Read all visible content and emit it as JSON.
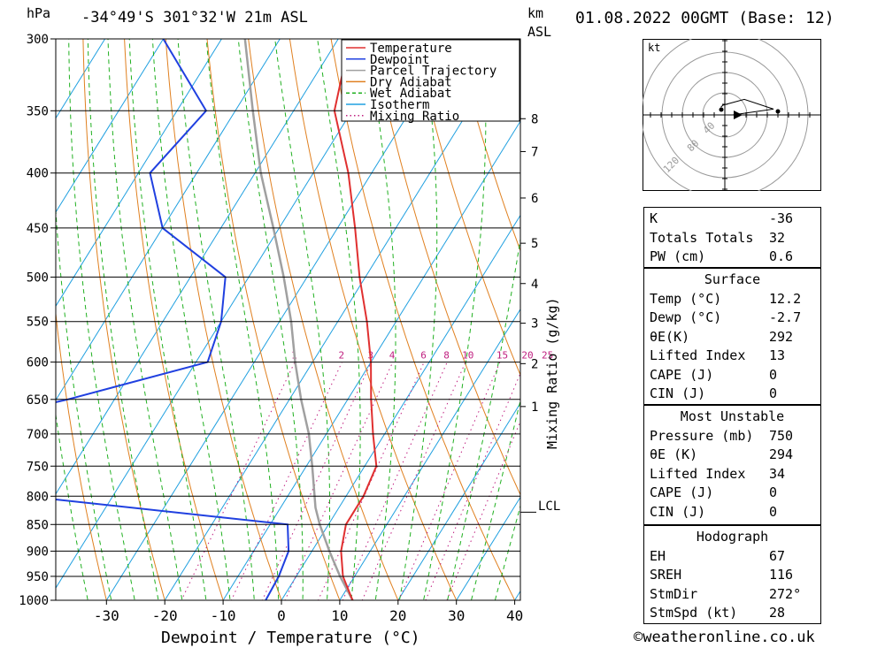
{
  "header": {
    "hpa_unit": "hPa",
    "location": "-34°49'S  301°32'W  21m  ASL",
    "km_unit": "km",
    "asl_label": "ASL",
    "datetime": "01.08.2022  00GMT  (Base: 12)"
  },
  "axes": {
    "xlabel": "Dewpoint / Temperature (°C)",
    "xticks": [
      "-30",
      "-20",
      "-10",
      "0",
      "10",
      "20",
      "30",
      "40"
    ],
    "pressure_levels": [
      "300",
      "350",
      "400",
      "450",
      "500",
      "550",
      "600",
      "650",
      "700",
      "750",
      "800",
      "850",
      "900",
      "950",
      "1000"
    ],
    "km_ticks": [
      "8",
      "7",
      "6",
      "5",
      "4",
      "3",
      "2",
      "1"
    ],
    "lcl_label": "LCL",
    "mixing_ratio_axis": "Mixing Ratio (g/kg)",
    "mixing_ratio_labels": [
      "1",
      "2",
      "3",
      "4",
      "6",
      "8",
      "10",
      "15",
      "20",
      "25"
    ]
  },
  "legend": {
    "items": [
      {
        "label": "Temperature",
        "color": "#e03030",
        "style": "solid"
      },
      {
        "label": "Dewpoint",
        "color": "#2040e0",
        "style": "solid"
      },
      {
        "label": "Parcel Trajectory",
        "color": "#a0a0a0",
        "style": "solid"
      },
      {
        "label": "Dry Adiabat",
        "color": "#e08020",
        "style": "solid"
      },
      {
        "label": "Wet Adiabat",
        "color": "#20b020",
        "style": "dashed"
      },
      {
        "label": "Isotherm",
        "color": "#20a0e0",
        "style": "solid"
      },
      {
        "label": "Mixing Ratio",
        "color": "#c02080",
        "style": "dotted"
      }
    ]
  },
  "hodograph": {
    "unit": "kt",
    "ring_labels": [
      "40",
      "80",
      "120"
    ]
  },
  "indices": {
    "top": [
      {
        "label": "K",
        "value": "-36"
      },
      {
        "label": "Totals Totals",
        "value": "32"
      },
      {
        "label": "PW (cm)",
        "value": "0.6"
      }
    ],
    "surface": {
      "title": "Surface",
      "rows": [
        {
          "label": "Temp (°C)",
          "value": "12.2"
        },
        {
          "label": "Dewp (°C)",
          "value": "-2.7"
        },
        {
          "label": "θE(K)",
          "value": "292"
        },
        {
          "label": "Lifted Index",
          "value": "13"
        },
        {
          "label": "CAPE (J)",
          "value": "0"
        },
        {
          "label": "CIN (J)",
          "value": "0"
        }
      ]
    },
    "most_unstable": {
      "title": "Most Unstable",
      "rows": [
        {
          "label": "Pressure (mb)",
          "value": "750"
        },
        {
          "label": "θE (K)",
          "value": "294"
        },
        {
          "label": "Lifted Index",
          "value": "34"
        },
        {
          "label": "CAPE (J)",
          "value": "0"
        },
        {
          "label": "CIN (J)",
          "value": "0"
        }
      ]
    },
    "hodograph_box": {
      "title": "Hodograph",
      "rows": [
        {
          "label": "EH",
          "value": "67"
        },
        {
          "label": "SREH",
          "value": "116"
        },
        {
          "label": "StmDir",
          "value": "272°"
        },
        {
          "label": "StmSpd (kt)",
          "value": "28"
        }
      ]
    }
  },
  "footer": {
    "copyright_symbol": "©",
    "site": "weatheronline.co.uk"
  },
  "colors": {
    "temperature": "#e03030",
    "dewpoint": "#2040e0",
    "parcel": "#a0a0a0",
    "dry_adiabat": "#e08020",
    "wet_adiabat": "#20b020",
    "isotherm": "#20a0e0",
    "mixing_ratio": "#c02080"
  },
  "chart_data": {
    "type": "line",
    "subtype": "skew-T log-P",
    "xlim": [
      -40,
      40
    ],
    "ylim_hpa": [
      1000,
      300
    ],
    "temperature": [
      {
        "p": 1000,
        "t": 12.2
      },
      {
        "p": 950,
        "t": 8
      },
      {
        "p": 900,
        "t": 5
      },
      {
        "p": 850,
        "t": 3
      },
      {
        "p": 800,
        "t": 3
      },
      {
        "p": 750,
        "t": 2
      },
      {
        "p": 700,
        "t": -2
      },
      {
        "p": 650,
        "t": -6
      },
      {
        "p": 600,
        "t": -10
      },
      {
        "p": 550,
        "t": -15
      },
      {
        "p": 500,
        "t": -21
      },
      {
        "p": 450,
        "t": -27
      },
      {
        "p": 400,
        "t": -34
      },
      {
        "p": 350,
        "t": -43
      },
      {
        "p": 300,
        "t": -48
      }
    ],
    "dewpoint": [
      {
        "p": 1000,
        "t": -2.7
      },
      {
        "p": 950,
        "t": -3
      },
      {
        "p": 900,
        "t": -4
      },
      {
        "p": 850,
        "t": -7
      },
      {
        "p": 800,
        "t": -55
      },
      {
        "p": 750,
        "t": -70
      },
      {
        "p": 700,
        "t": -80
      },
      {
        "p": 650,
        "t": -58
      },
      {
        "p": 600,
        "t": -38
      },
      {
        "p": 550,
        "t": -40
      },
      {
        "p": 500,
        "t": -44
      },
      {
        "p": 450,
        "t": -60
      },
      {
        "p": 400,
        "t": -68
      },
      {
        "p": 350,
        "t": -65
      },
      {
        "p": 300,
        "t": -80
      }
    ],
    "parcel": [
      {
        "p": 1000,
        "t": 12.2
      },
      {
        "p": 950,
        "t": 7.5
      },
      {
        "p": 900,
        "t": 3
      },
      {
        "p": 850,
        "t": -1.5
      },
      {
        "p": 820,
        "t": -4
      },
      {
        "p": 750,
        "t": -9
      },
      {
        "p": 700,
        "t": -13
      },
      {
        "p": 650,
        "t": -18
      },
      {
        "p": 600,
        "t": -23
      },
      {
        "p": 550,
        "t": -28
      },
      {
        "p": 500,
        "t": -34
      },
      {
        "p": 450,
        "t": -41
      },
      {
        "p": 400,
        "t": -49
      },
      {
        "p": 350,
        "t": -57
      },
      {
        "p": 300,
        "t": -66
      }
    ],
    "lcl_hpa": 820,
    "mixing_ratio_lines_gkg": [
      1,
      2,
      3,
      4,
      6,
      8,
      10,
      15,
      20,
      25
    ],
    "hodograph_kt": [
      {
        "u": -2,
        "v": 4
      },
      {
        "u": -1,
        "v": 5
      },
      {
        "u": 10,
        "v": 8
      },
      {
        "u": 25,
        "v": 3
      },
      {
        "u": 4,
        "v": 0
      }
    ]
  }
}
